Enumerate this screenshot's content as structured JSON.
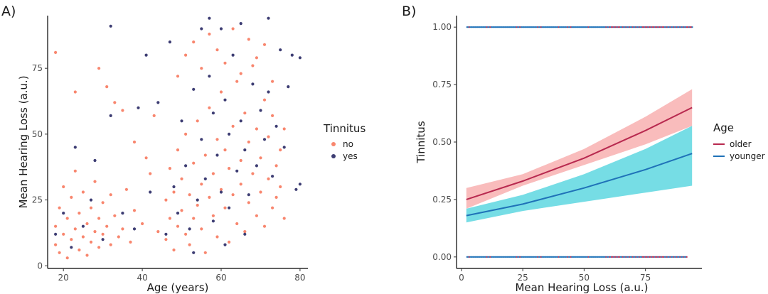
{
  "chart_data": [
    {
      "type": "scatter",
      "panel_label": "A)",
      "title": "",
      "xlabel": "Age (years)",
      "ylabel": "Mean Hearing Loss (a.u.)",
      "xlim": [
        16,
        82
      ],
      "ylim": [
        -1,
        95
      ],
      "xticks": [
        20,
        40,
        60,
        80
      ],
      "yticks": [
        0,
        25,
        50,
        75
      ],
      "legend": {
        "title": "Tinnitus",
        "position": "right",
        "entries": [
          "no",
          "yes"
        ]
      },
      "series": [
        {
          "name": "no",
          "color": "#f8866e",
          "points": [
            [
              18,
              8
            ],
            [
              18,
              15
            ],
            [
              19,
              22
            ],
            [
              19,
              5
            ],
            [
              20,
              12
            ],
            [
              20,
              30
            ],
            [
              21,
              18
            ],
            [
              21,
              3
            ],
            [
              22,
              26
            ],
            [
              22,
              10
            ],
            [
              23,
              14
            ],
            [
              23,
              36
            ],
            [
              24,
              20
            ],
            [
              24,
              6
            ],
            [
              25,
              11
            ],
            [
              25,
              28
            ],
            [
              26,
              16
            ],
            [
              26,
              4
            ],
            [
              27,
              22
            ],
            [
              27,
              9
            ],
            [
              28,
              13
            ],
            [
              28,
              32
            ],
            [
              29,
              7
            ],
            [
              29,
              18
            ],
            [
              30,
              24
            ],
            [
              30,
              12
            ],
            [
              31,
              15
            ],
            [
              32,
              8
            ],
            [
              32,
              27
            ],
            [
              33,
              19
            ],
            [
              34,
              11
            ],
            [
              35,
              14
            ],
            [
              36,
              29
            ],
            [
              37,
              9
            ],
            [
              38,
              21
            ],
            [
              40,
              16
            ],
            [
              42,
              35
            ],
            [
              44,
              13
            ],
            [
              18,
              81
            ],
            [
              23,
              66
            ],
            [
              29,
              75
            ],
            [
              31,
              68
            ],
            [
              33,
              62
            ],
            [
              35,
              59
            ],
            [
              38,
              47
            ],
            [
              41,
              41
            ],
            [
              43,
              57
            ],
            [
              46,
              10
            ],
            [
              46,
              25
            ],
            [
              47,
              18
            ],
            [
              47,
              37
            ],
            [
              48,
              6
            ],
            [
              48,
              28
            ],
            [
              49,
              15
            ],
            [
              49,
              44
            ],
            [
              50,
              21
            ],
            [
              50,
              33
            ],
            [
              51,
              12
            ],
            [
              51,
              50
            ],
            [
              52,
              27
            ],
            [
              52,
              8
            ],
            [
              53,
              39
            ],
            [
              53,
              18
            ],
            [
              54,
              23
            ],
            [
              54,
              55
            ],
            [
              55,
              14
            ],
            [
              55,
              31
            ],
            [
              56,
              42
            ],
            [
              56,
              5
            ],
            [
              57,
              26
            ],
            [
              57,
              60
            ],
            [
              58,
              19
            ],
            [
              58,
              35
            ],
            [
              59,
              48
            ],
            [
              59,
              11
            ],
            [
              60,
              29
            ],
            [
              60,
              66
            ],
            [
              61,
              22
            ],
            [
              61,
              44
            ],
            [
              62,
              37
            ],
            [
              62,
              9
            ],
            [
              63,
              53
            ],
            [
              63,
              27
            ],
            [
              64,
              16
            ],
            [
              64,
              70
            ],
            [
              65,
              40
            ],
            [
              65,
              31
            ],
            [
              66,
              58
            ],
            [
              66,
              13
            ],
            [
              67,
              24
            ],
            [
              67,
              47
            ],
            [
              68,
              35
            ],
            [
              68,
              76
            ],
            [
              69,
              19
            ],
            [
              69,
              52
            ],
            [
              70,
              41
            ],
            [
              70,
              28
            ],
            [
              71,
              63
            ],
            [
              71,
              15
            ],
            [
              72,
              33
            ],
            [
              72,
              49
            ],
            [
              73,
              22
            ],
            [
              73,
              57
            ],
            [
              74,
              38
            ],
            [
              74,
              26
            ],
            [
              75,
              44
            ],
            [
              75,
              30
            ],
            [
              76,
              18
            ],
            [
              76,
              52
            ],
            [
              49,
              72
            ],
            [
              51,
              80
            ],
            [
              53,
              85
            ],
            [
              55,
              75
            ],
            [
              57,
              88
            ],
            [
              59,
              82
            ],
            [
              61,
              77
            ],
            [
              63,
              90
            ],
            [
              65,
              73
            ],
            [
              67,
              86
            ],
            [
              69,
              79
            ],
            [
              71,
              84
            ],
            [
              73,
              70
            ]
          ]
        },
        {
          "name": "yes",
          "color": "#3d3d73",
          "points": [
            [
              18,
              12
            ],
            [
              20,
              20
            ],
            [
              22,
              7
            ],
            [
              23,
              45
            ],
            [
              25,
              15
            ],
            [
              27,
              25
            ],
            [
              28,
              40
            ],
            [
              30,
              10
            ],
            [
              32,
              57
            ],
            [
              32,
              91
            ],
            [
              35,
              20
            ],
            [
              38,
              14
            ],
            [
              39,
              60
            ],
            [
              41,
              80
            ],
            [
              42,
              28
            ],
            [
              44,
              62
            ],
            [
              46,
              12
            ],
            [
              47,
              85
            ],
            [
              48,
              30
            ],
            [
              49,
              20
            ],
            [
              50,
              55
            ],
            [
              51,
              38
            ],
            [
              52,
              14
            ],
            [
              53,
              67
            ],
            [
              54,
              25
            ],
            [
              55,
              48
            ],
            [
              56,
              33
            ],
            [
              57,
              72
            ],
            [
              58,
              17
            ],
            [
              58,
              58
            ],
            [
              59,
              42
            ],
            [
              60,
              28
            ],
            [
              60,
              90
            ],
            [
              61,
              63
            ],
            [
              62,
              50
            ],
            [
              62,
              22
            ],
            [
              63,
              80
            ],
            [
              64,
              36
            ],
            [
              65,
              92
            ],
            [
              65,
              55
            ],
            [
              66,
              44
            ],
            [
              67,
              27
            ],
            [
              68,
              69
            ],
            [
              69,
              38
            ],
            [
              70,
              59
            ],
            [
              71,
              48
            ],
            [
              72,
              94
            ],
            [
              72,
              66
            ],
            [
              73,
              34
            ],
            [
              74,
              53
            ],
            [
              75,
              82
            ],
            [
              76,
              45
            ],
            [
              77,
              68
            ],
            [
              78,
              80
            ],
            [
              79,
              29
            ],
            [
              80,
              31
            ],
            [
              80,
              79
            ],
            [
              57,
              94
            ],
            [
              55,
              90
            ],
            [
              53,
              5
            ],
            [
              61,
              8
            ],
            [
              66,
              12
            ]
          ]
        }
      ]
    },
    {
      "type": "line",
      "panel_label": "B)",
      "title": "",
      "xlabel": "Mean Hearing Loss (a.u.)",
      "ylabel": "Tinnitus",
      "xlim": [
        -2,
        98
      ],
      "ylim": [
        -0.05,
        1.05
      ],
      "xticks": [
        0,
        25,
        50,
        75
      ],
      "yticks": [
        0.0,
        0.25,
        0.5,
        0.75,
        1.0
      ],
      "ytick_labels": [
        "0.00",
        "0.25",
        "0.50",
        "0.75",
        "1.00"
      ],
      "legend": {
        "title": "Age",
        "position": "right",
        "entries": [
          "older",
          "younger"
        ]
      },
      "series": [
        {
          "name": "older",
          "color": "#b8294f",
          "band_color": "#f7a6a6",
          "x": [
            2,
            25,
            50,
            75,
            94
          ],
          "y": [
            0.25,
            0.33,
            0.43,
            0.55,
            0.65
          ],
          "lower": [
            0.21,
            0.31,
            0.4,
            0.49,
            0.57
          ],
          "upper": [
            0.3,
            0.36,
            0.47,
            0.61,
            0.73
          ]
        },
        {
          "name": "younger",
          "color": "#1f72b8",
          "band_color": "#48d2dc",
          "x": [
            2,
            25,
            50,
            75,
            94
          ],
          "y": [
            0.18,
            0.23,
            0.3,
            0.38,
            0.45
          ],
          "lower": [
            0.15,
            0.2,
            0.24,
            0.28,
            0.31
          ],
          "upper": [
            0.21,
            0.27,
            0.36,
            0.47,
            0.57
          ]
        }
      ],
      "observations": {
        "top_y": 1,
        "bottom_y": 0,
        "top_x_range": [
          2,
          94
        ],
        "bottom_x_range": [
          2,
          92
        ]
      }
    }
  ]
}
